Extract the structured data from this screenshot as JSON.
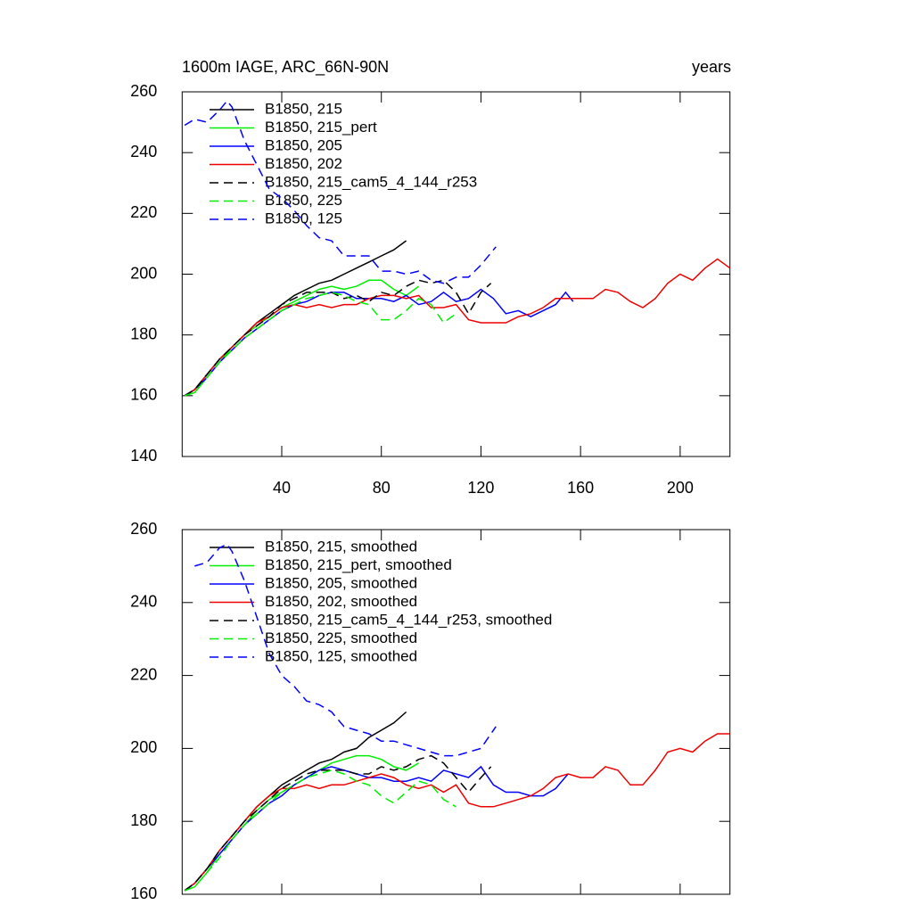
{
  "chart_data": [
    {
      "type": "line",
      "title": "1600m IAGE, ARC_66N-90N",
      "right_title": "years",
      "xlim": [
        0,
        220
      ],
      "xticks": [
        40,
        80,
        120,
        160,
        200
      ],
      "xtick_labels": true,
      "ylim": [
        140,
        260
      ],
      "yticks": [
        140,
        160,
        180,
        200,
        220,
        240,
        260
      ],
      "legend": "upper-left",
      "series": [
        {
          "name": "B1850, 215",
          "color": "#000000",
          "dash": false,
          "x": [
            1,
            5,
            10,
            15,
            20,
            25,
            30,
            35,
            40,
            45,
            50,
            55,
            60,
            65,
            70,
            75,
            80,
            85,
            90
          ],
          "values": [
            160,
            162,
            167,
            172,
            176,
            180,
            184,
            187,
            190,
            193,
            195,
            197,
            198,
            200,
            202,
            204,
            206,
            208,
            211
          ]
        },
        {
          "name": "B1850, 215_pert",
          "color": "#00ee00",
          "dash": false,
          "x": [
            1,
            5,
            10,
            15,
            20,
            25,
            30,
            35,
            40,
            45,
            50,
            55,
            60,
            65,
            70,
            75,
            80,
            85,
            90,
            95
          ],
          "values": [
            160,
            161,
            166,
            171,
            176,
            180,
            183,
            186,
            189,
            191,
            193,
            195,
            196,
            195,
            196,
            198,
            198,
            195,
            193,
            196
          ]
        },
        {
          "name": "B1850, 205",
          "color": "#0000ff",
          "dash": false,
          "x": [
            1,
            5,
            10,
            15,
            20,
            25,
            30,
            35,
            40,
            45,
            50,
            55,
            60,
            65,
            70,
            75,
            80,
            85,
            90,
            95,
            100,
            105,
            110,
            115,
            120,
            125,
            130,
            135,
            140,
            145,
            150,
            154,
            157
          ],
          "values": [
            160,
            162,
            166,
            171,
            175,
            179,
            182,
            185,
            188,
            190,
            191,
            193,
            194,
            194,
            192,
            192,
            192,
            191,
            193,
            190,
            191,
            194,
            191,
            192,
            195,
            192,
            187,
            188,
            186,
            188,
            190,
            194,
            191
          ]
        },
        {
          "name": "B1850, 202",
          "color": "#ee0000",
          "dash": false,
          "x": [
            1,
            5,
            10,
            15,
            20,
            25,
            30,
            35,
            40,
            45,
            50,
            55,
            60,
            65,
            70,
            75,
            80,
            85,
            90,
            95,
            100,
            105,
            110,
            115,
            120,
            125,
            130,
            135,
            140,
            145,
            150,
            155,
            160,
            165,
            170,
            175,
            180,
            185,
            190,
            195,
            200,
            205,
            210,
            215,
            220
          ],
          "values": [
            160,
            162,
            167,
            172,
            176,
            180,
            184,
            186,
            189,
            190,
            189,
            190,
            189,
            190,
            190,
            192,
            193,
            193,
            192,
            193,
            189,
            189,
            190,
            185,
            184,
            184,
            184,
            186,
            187,
            189,
            192,
            192,
            192,
            192,
            195,
            194,
            191,
            189,
            192,
            197,
            200,
            198,
            202,
            205,
            202
          ]
        },
        {
          "name": "B1850, 215_cam5_4_144_r253",
          "color": "#000000",
          "dash": true,
          "x": [
            1,
            5,
            10,
            15,
            20,
            25,
            30,
            35,
            40,
            45,
            50,
            55,
            60,
            65,
            70,
            75,
            80,
            85,
            90,
            95,
            100,
            105,
            110,
            115,
            120,
            124
          ],
          "values": [
            160,
            162,
            167,
            172,
            176,
            180,
            183,
            186,
            190,
            192,
            194,
            194,
            194,
            192,
            193,
            191,
            194,
            193,
            196,
            198,
            197,
            198,
            194,
            187,
            194,
            197
          ]
        },
        {
          "name": "B1850, 225",
          "color": "#00ee00",
          "dash": true,
          "x": [
            1,
            5,
            10,
            15,
            20,
            25,
            30,
            35,
            40,
            45,
            50,
            55,
            60,
            65,
            70,
            75,
            80,
            85,
            90,
            95,
            100,
            105,
            110
          ],
          "values": [
            160,
            161,
            166,
            171,
            175,
            179,
            182,
            185,
            188,
            190,
            192,
            193,
            194,
            193,
            191,
            190,
            185,
            185,
            188,
            192,
            190,
            184,
            187
          ]
        },
        {
          "name": "B1850, 125",
          "color": "#0000ff",
          "dash": true,
          "x": [
            1,
            5,
            10,
            15,
            18,
            20,
            25,
            30,
            35,
            40,
            45,
            50,
            55,
            60,
            65,
            70,
            75,
            80,
            85,
            90,
            95,
            100,
            105,
            110,
            115,
            120,
            126
          ],
          "values": [
            249,
            251,
            250,
            254,
            257,
            255,
            244,
            236,
            228,
            225,
            221,
            216,
            212,
            211,
            206,
            206,
            206,
            201,
            201,
            200,
            201,
            198,
            197,
            199,
            199,
            203,
            209
          ]
        }
      ]
    },
    {
      "type": "line",
      "xlim": [
        0,
        220
      ],
      "xticks": [
        40,
        80,
        120,
        160,
        200
      ],
      "xtick_labels": false,
      "ylim": [
        160,
        260
      ],
      "yticks": [
        160,
        180,
        200,
        220,
        240,
        260
      ],
      "legend": "upper-left",
      "series": [
        {
          "name": "B1850, 215, smoothed",
          "color": "#000000",
          "dash": false,
          "x": [
            1,
            5,
            10,
            15,
            20,
            25,
            30,
            35,
            40,
            45,
            50,
            55,
            60,
            65,
            70,
            75,
            80,
            85,
            90
          ],
          "values": [
            161,
            163,
            167,
            172,
            176,
            180,
            184,
            187,
            190,
            192,
            194,
            196,
            197,
            199,
            200,
            203,
            205,
            207,
            210
          ]
        },
        {
          "name": "B1850, 215_pert, smoothed",
          "color": "#00ee00",
          "dash": false,
          "x": [
            1,
            5,
            10,
            15,
            20,
            25,
            30,
            35,
            40,
            45,
            50,
            55,
            60,
            65,
            70,
            75,
            80,
            85,
            90,
            95
          ],
          "values": [
            161,
            162,
            166,
            171,
            175,
            179,
            183,
            186,
            188,
            190,
            192,
            194,
            196,
            197,
            198,
            198,
            197,
            195,
            194,
            196
          ]
        },
        {
          "name": "B1850, 205, smoothed",
          "color": "#0000ff",
          "dash": false,
          "x": [
            1,
            5,
            10,
            15,
            20,
            25,
            30,
            35,
            40,
            45,
            50,
            55,
            60,
            65,
            70,
            75,
            80,
            85,
            90,
            95,
            100,
            105,
            110,
            115,
            120,
            125,
            130,
            135,
            140,
            145,
            150,
            155
          ],
          "values": [
            161,
            163,
            167,
            171,
            175,
            179,
            182,
            185,
            187,
            190,
            192,
            194,
            195,
            194,
            193,
            192,
            192,
            191,
            191,
            192,
            191,
            194,
            193,
            192,
            195,
            190,
            188,
            188,
            187,
            187,
            189,
            193
          ]
        },
        {
          "name": "B1850, 202, smoothed",
          "color": "#ee0000",
          "dash": false,
          "x": [
            1,
            5,
            10,
            15,
            20,
            25,
            30,
            35,
            40,
            45,
            50,
            55,
            60,
            65,
            70,
            75,
            80,
            85,
            90,
            95,
            100,
            105,
            110,
            115,
            120,
            125,
            130,
            135,
            140,
            145,
            150,
            155,
            160,
            165,
            170,
            175,
            180,
            185,
            190,
            195,
            200,
            205,
            210,
            215,
            220
          ],
          "values": [
            161,
            163,
            167,
            172,
            176,
            180,
            184,
            187,
            189,
            189,
            190,
            189,
            190,
            190,
            191,
            192,
            193,
            192,
            190,
            189,
            190,
            188,
            190,
            185,
            184,
            184,
            185,
            186,
            187,
            189,
            192,
            193,
            192,
            192,
            195,
            194,
            190,
            190,
            194,
            199,
            200,
            199,
            202,
            204,
            204
          ]
        },
        {
          "name": "B1850, 215_cam5_4_144_r253, smoothed",
          "color": "#000000",
          "dash": true,
          "x": [
            1,
            5,
            10,
            15,
            20,
            25,
            30,
            35,
            40,
            45,
            50,
            55,
            60,
            65,
            70,
            75,
            80,
            85,
            90,
            95,
            100,
            105,
            110,
            115,
            120,
            124
          ],
          "values": [
            161,
            163,
            167,
            172,
            176,
            180,
            183,
            186,
            189,
            191,
            193,
            194,
            194,
            194,
            193,
            193,
            195,
            194,
            195,
            197,
            198,
            196,
            192,
            188,
            192,
            195
          ]
        },
        {
          "name": "B1850, 225, smoothed",
          "color": "#00ee00",
          "dash": true,
          "x": [
            1,
            5,
            10,
            15,
            20,
            25,
            30,
            35,
            40,
            45,
            50,
            55,
            60,
            65,
            70,
            75,
            80,
            85,
            90,
            95,
            100,
            105,
            110
          ],
          "values": [
            161,
            162,
            166,
            170,
            175,
            179,
            182,
            185,
            188,
            190,
            192,
            193,
            194,
            193,
            191,
            190,
            187,
            185,
            188,
            191,
            190,
            186,
            184
          ]
        },
        {
          "name": "B1850, 125, smoothed",
          "color": "#0000ff",
          "dash": true,
          "x": [
            5,
            10,
            15,
            18,
            20,
            25,
            30,
            35,
            40,
            45,
            50,
            55,
            60,
            65,
            70,
            75,
            80,
            85,
            90,
            95,
            100,
            105,
            110,
            115,
            120,
            126
          ],
          "values": [
            250,
            251,
            255,
            256,
            254,
            246,
            236,
            226,
            220,
            217,
            213,
            212,
            210,
            206,
            205,
            204,
            202,
            202,
            201,
            200,
            199,
            198,
            198,
            199,
            200,
            206
          ]
        }
      ]
    }
  ]
}
